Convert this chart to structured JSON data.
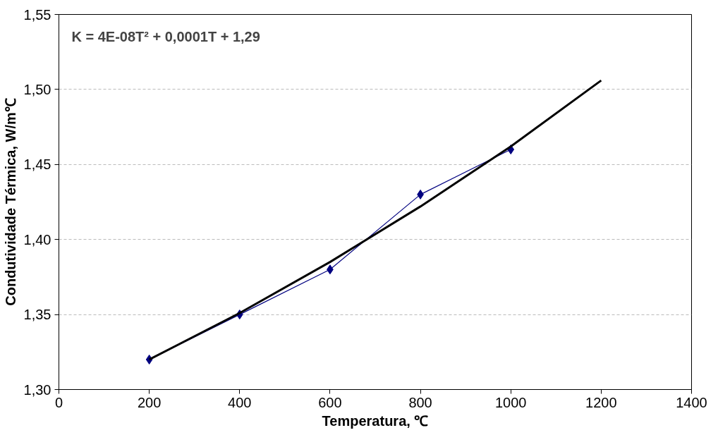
{
  "chart_data": {
    "type": "line",
    "xlabel": "Temperatura, ℃",
    "ylabel": "Condutividade Térmica, W/m℃",
    "annotations": [
      "K = 4E-08T² + 0,0001T + 1,29"
    ],
    "series": [
      {
        "color": "#000080",
        "marker": "diamond",
        "x": [
          200,
          400,
          600,
          800,
          1000
        ],
        "values": [
          1.32,
          1.35,
          1.38,
          1.43,
          1.46
        ]
      },
      {
        "color": "#000000",
        "marker": "none",
        "x": [
          200,
          400,
          600,
          800,
          1000,
          1200
        ],
        "values": [
          1.32,
          1.351,
          1.385,
          1.422,
          1.462,
          1.506
        ]
      }
    ],
    "xlim": [
      0,
      1400
    ],
    "xticks": [
      0,
      200,
      400,
      600,
      800,
      1000,
      1200,
      1400
    ],
    "ylim": [
      1.3,
      1.55
    ],
    "yticks": [
      {
        "value": 1.3,
        "label": "1,30"
      },
      {
        "value": 1.35,
        "label": "1,35"
      },
      {
        "value": 1.4,
        "label": "1,40"
      },
      {
        "value": 1.45,
        "label": "1,45"
      },
      {
        "value": 1.5,
        "label": "1,50"
      },
      {
        "value": 1.55,
        "label": "1,55"
      }
    ],
    "grid": "y"
  }
}
